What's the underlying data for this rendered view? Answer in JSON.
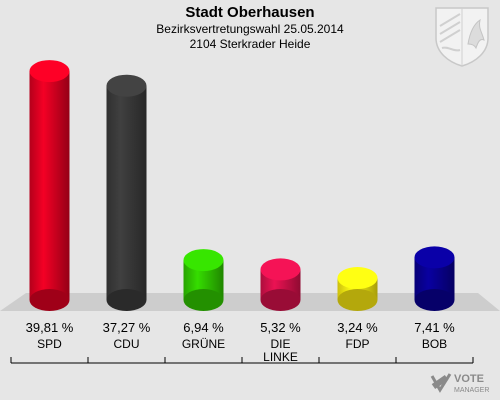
{
  "header": {
    "title": "Stadt Oberhausen",
    "subtitle": "Bezirksvertretungswahl 25.05.2014",
    "district": "2104 Sterkrader Heide"
  },
  "crest": {
    "icon": "nrw-crest-icon"
  },
  "logo": {
    "line1": "VOTE",
    "line2": "MANAGER",
    "icon": "vote-manager-logo-icon"
  },
  "chart_data": {
    "type": "bar",
    "title": "Stadt Oberhausen",
    "subtitle": "Bezirksvertretungswahl 25.05.2014",
    "district": "2104 Sterkrader Heide",
    "categories": [
      "SPD",
      "CDU",
      "GRÜNE",
      "DIE\nLINKE",
      "FDP",
      "BOB"
    ],
    "values": [
      39.81,
      37.27,
      6.94,
      5.32,
      3.24,
      7.41
    ],
    "value_labels": [
      "39,81 %",
      "37,27 %",
      "6,94 %",
      "5,32 %",
      "3,24 %",
      "7,41 %"
    ],
    "colors": [
      "#d40020",
      "#383838",
      "#2ec000",
      "#cc1048",
      "#f0e010",
      "#08008c"
    ],
    "ylim": [
      0,
      40
    ],
    "grid": false,
    "legend": "none"
  }
}
